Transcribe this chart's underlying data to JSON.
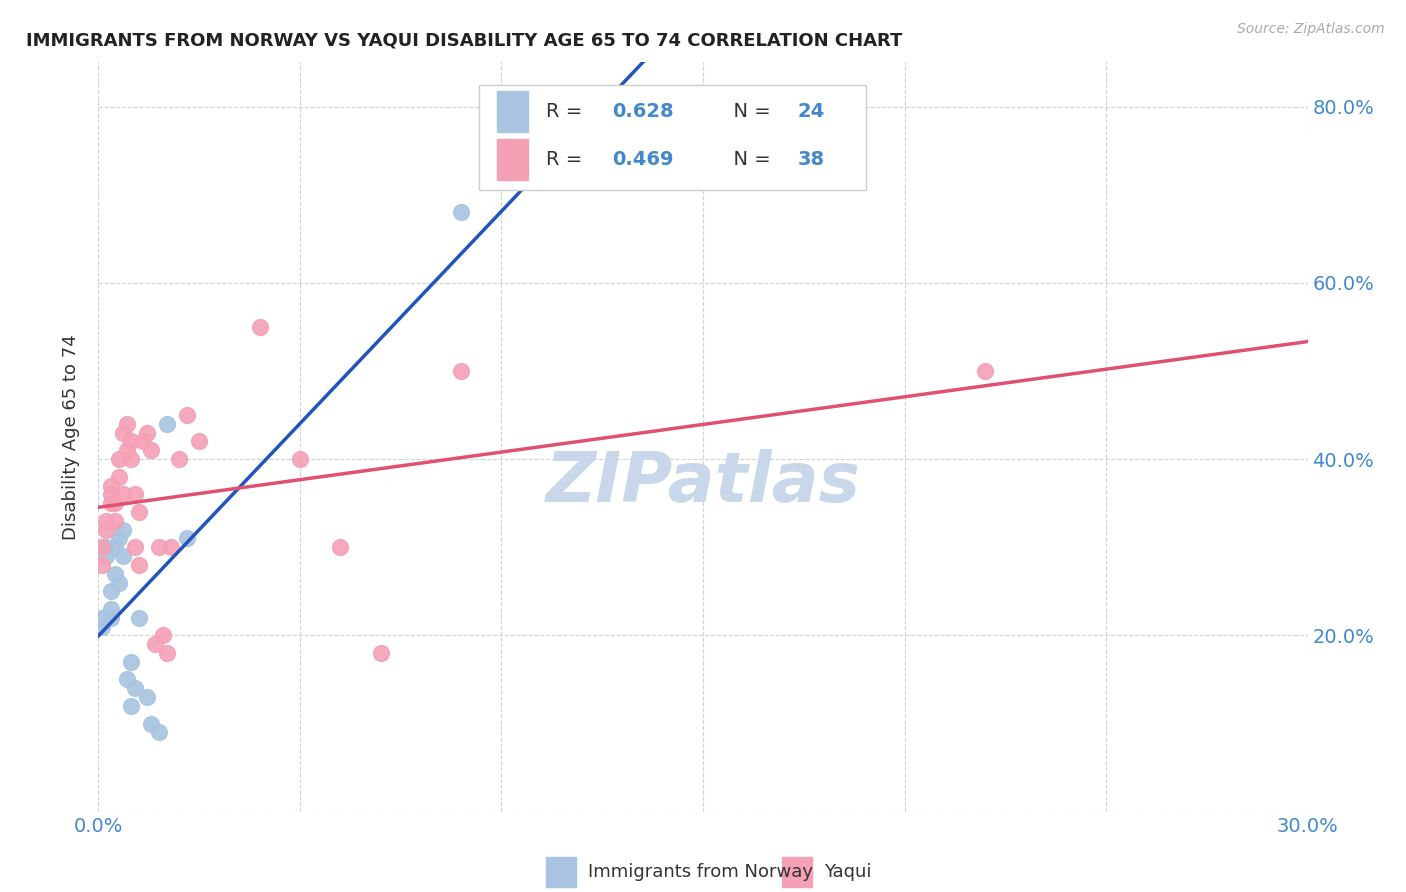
{
  "title": "IMMIGRANTS FROM NORWAY VS YAQUI DISABILITY AGE 65 TO 74 CORRELATION CHART",
  "source": "Source: ZipAtlas.com",
  "ylabel": "Disability Age 65 to 74",
  "xlim": [
    0.0,
    0.3
  ],
  "ylim": [
    0.0,
    0.85
  ],
  "norway_R": 0.628,
  "norway_N": 24,
  "yaqui_R": 0.469,
  "yaqui_N": 38,
  "norway_color": "#a8c4e0",
  "yaqui_color": "#f4a0b5",
  "norway_line_color": "#2255bb",
  "yaqui_line_color": "#e05070",
  "norway_scatter_x": [
    0.001,
    0.001,
    0.002,
    0.002,
    0.003,
    0.003,
    0.003,
    0.004,
    0.004,
    0.005,
    0.005,
    0.006,
    0.006,
    0.007,
    0.008,
    0.008,
    0.009,
    0.01,
    0.012,
    0.013,
    0.015,
    0.017,
    0.022,
    0.09
  ],
  "norway_scatter_y": [
    0.21,
    0.22,
    0.29,
    0.3,
    0.25,
    0.23,
    0.22,
    0.27,
    0.3,
    0.26,
    0.31,
    0.29,
    0.32,
    0.15,
    0.17,
    0.12,
    0.14,
    0.22,
    0.13,
    0.1,
    0.09,
    0.44,
    0.31,
    0.68
  ],
  "yaqui_scatter_x": [
    0.001,
    0.001,
    0.002,
    0.002,
    0.003,
    0.003,
    0.003,
    0.004,
    0.004,
    0.005,
    0.005,
    0.006,
    0.006,
    0.007,
    0.007,
    0.008,
    0.008,
    0.009,
    0.009,
    0.01,
    0.01,
    0.011,
    0.012,
    0.013,
    0.014,
    0.015,
    0.016,
    0.017,
    0.018,
    0.02,
    0.022,
    0.025,
    0.04,
    0.05,
    0.06,
    0.07,
    0.09,
    0.22
  ],
  "yaqui_scatter_y": [
    0.3,
    0.28,
    0.32,
    0.33,
    0.35,
    0.36,
    0.37,
    0.33,
    0.35,
    0.38,
    0.4,
    0.36,
    0.43,
    0.41,
    0.44,
    0.42,
    0.4,
    0.36,
    0.3,
    0.34,
    0.28,
    0.42,
    0.43,
    0.41,
    0.19,
    0.3,
    0.2,
    0.18,
    0.3,
    0.4,
    0.45,
    0.42,
    0.55,
    0.4,
    0.3,
    0.18,
    0.5,
    0.5
  ],
  "background_color": "#ffffff",
  "grid_color": "#cccccc",
  "watermark_text": "ZIPatlas",
  "watermark_color": "#c8d8ea"
}
